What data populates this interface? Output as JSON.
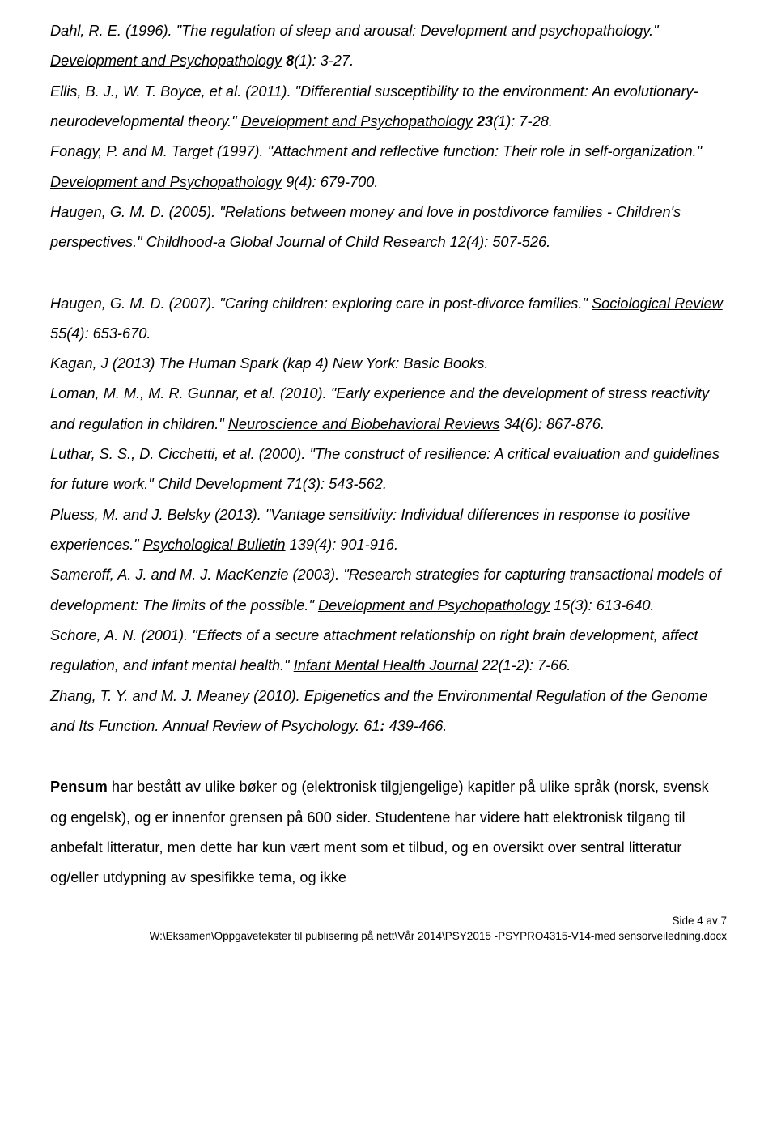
{
  "refs": [
    {
      "pre": "Dahl, R. E. (1996). \"The regulation of sleep and arousal: Development and psychopathology.\" ",
      "journal": "Development and Psychopathology",
      "vol": "8",
      "tail": "(1): 3-27."
    },
    {
      "pre": "Ellis, B. J., W. T. Boyce, et al. (2011). \"Differential susceptibility to the environment: An evolutionary-neurodevelopmental theory.\" ",
      "journal": "Development and Psychopathology",
      "vol": "23",
      "tail": "(1): 7-28."
    },
    {
      "pre": "Fonagy, P. and M. Target (1997). \"Attachment and reflective function: Their role in self-organization.\" ",
      "journal": "Development and Psychopathology",
      "tail2": " 9(4): 679-700."
    },
    {
      "pre": "Haugen, G. M. D. (2005). \"Relations between money and love in postdivorce families - Children's perspectives.\" ",
      "journal": "Childhood-a Global Journal of Child Research",
      "tail2": " 12(4): 507-526."
    }
  ],
  "refs2": [
    {
      "pre": "Haugen, G. M. D. (2007). \"Caring children: exploring care in post-divorce families.\" ",
      "journal": "Sociological Review",
      "tail2": " 55(4): 653-670."
    },
    {
      "plain": "Kagan, J (2013) The Human Spark (kap 4) New York: Basic Books."
    },
    {
      "pre": "Loman, M. M., M. R. Gunnar, et al. (2010). \"Early experience and the development of stress reactivity and regulation in children.\" ",
      "journal": "Neuroscience and Biobehavioral Reviews",
      "tail2": " 34(6): 867-876."
    },
    {
      "pre": "Luthar, S. S., D. Cicchetti, et al. (2000). \"The construct of resilience: A critical evaluation and guidelines for future work.\" ",
      "journal": "Child Development",
      "tail2": " 71(3): 543-562."
    },
    {
      "pre": "Pluess, M. and J. Belsky (2013). \"Vantage sensitivity: Individual differences in response to positive experiences.\" ",
      "journal": "Psychological Bulletin",
      "tail2": " 139(4): 901-916."
    },
    {
      "pre": "Sameroff, A. J. and M. J. MacKenzie (2003). \"Research strategies for capturing transactional models of development: The limits of the possible.\" ",
      "journal": "Development and Psychopathology",
      "tail2": " 15(3): 613-640."
    },
    {
      "pre": "Schore, A. N. (2001). \"Effects of a secure attachment relationship on right brain development, affect regulation, and infant mental health.\" ",
      "journal": "Infant Mental Health Journal",
      "tail2": " 22(1-2): 7-66."
    },
    {
      "pre": "Zhang, T. Y. and M. J. Meaney (2010). Epigenetics and the Environmental Regulation of the Genome and Its Function. ",
      "journal": "Annual Review of Psychology",
      "tail3_a": ". 61",
      "tail3_b": ": ",
      "tail3_c": "439-466."
    }
  ],
  "pensum_bold": "Pensum",
  "pensum_rest": " har bestått av ulike bøker og (elektronisk tilgjengelige) kapitler på ulike språk (norsk, svensk og engelsk), og er innenfor grensen på 600 sider. Studentene har videre hatt elektronisk tilgang til anbefalt litteratur, men dette har kun vært ment som et tilbud, og en oversikt over sentral litteratur og/eller utdypning av spesifikke tema, og ikke",
  "footer_page": "Side 4 av 7",
  "footer_path": "W:\\Eksamen\\Oppgavetekster til publisering på nett\\Vår 2014\\PSY2015 -PSYPRO4315-V14-med sensorveiledning.docx"
}
